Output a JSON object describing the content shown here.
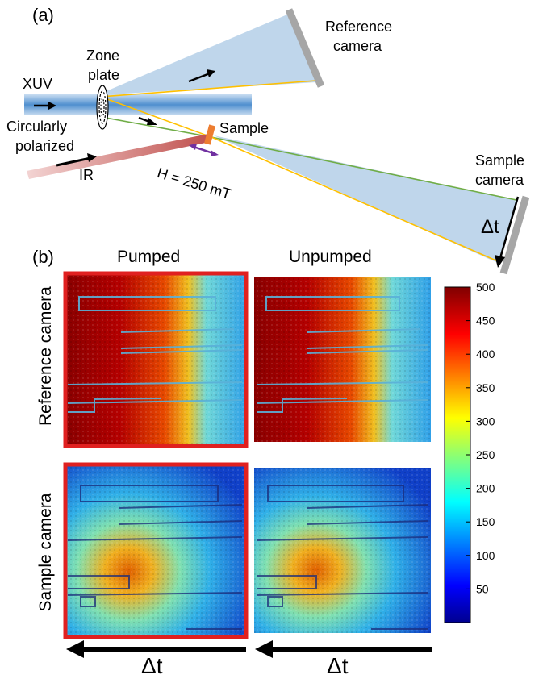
{
  "panel_a": {
    "label": "(a)",
    "labels": {
      "xuv": "XUV",
      "zone_plate_line1": "Zone",
      "zone_plate_line2": "plate",
      "circular_line1": "Circularly",
      "circular_line2": "polarized",
      "ir": "IR",
      "sample": "Sample",
      "field": "H = 250 mT",
      "reference_camera_line1": "Reference",
      "reference_camera_line2": "camera",
      "sample_camera_line1": "Sample",
      "sample_camera_line2": "camera",
      "delta_t": "Δt"
    },
    "colors": {
      "xuv_beam": "#5b9bd5",
      "cone_fill": "#b4cfe8",
      "ir_beam": "#c0504d",
      "ref_ray": "#ffc000",
      "green_ray": "#70ad47",
      "sample_plate": "#ed7d31",
      "field_arrow": "#7030a0",
      "camera": "#a6a6a6"
    }
  },
  "panel_b": {
    "label": "(b)",
    "columns": [
      "Pumped",
      "Unpumped"
    ],
    "rows": [
      "Reference camera",
      "Sample camera"
    ],
    "highlight_color": "#e02020",
    "time_arrow_label": "Δt",
    "colorbar": {
      "colormap": "jet",
      "range": [
        0,
        500
      ],
      "ticks": [
        500,
        450,
        400,
        350,
        300,
        250,
        200,
        150,
        100,
        50
      ]
    }
  }
}
